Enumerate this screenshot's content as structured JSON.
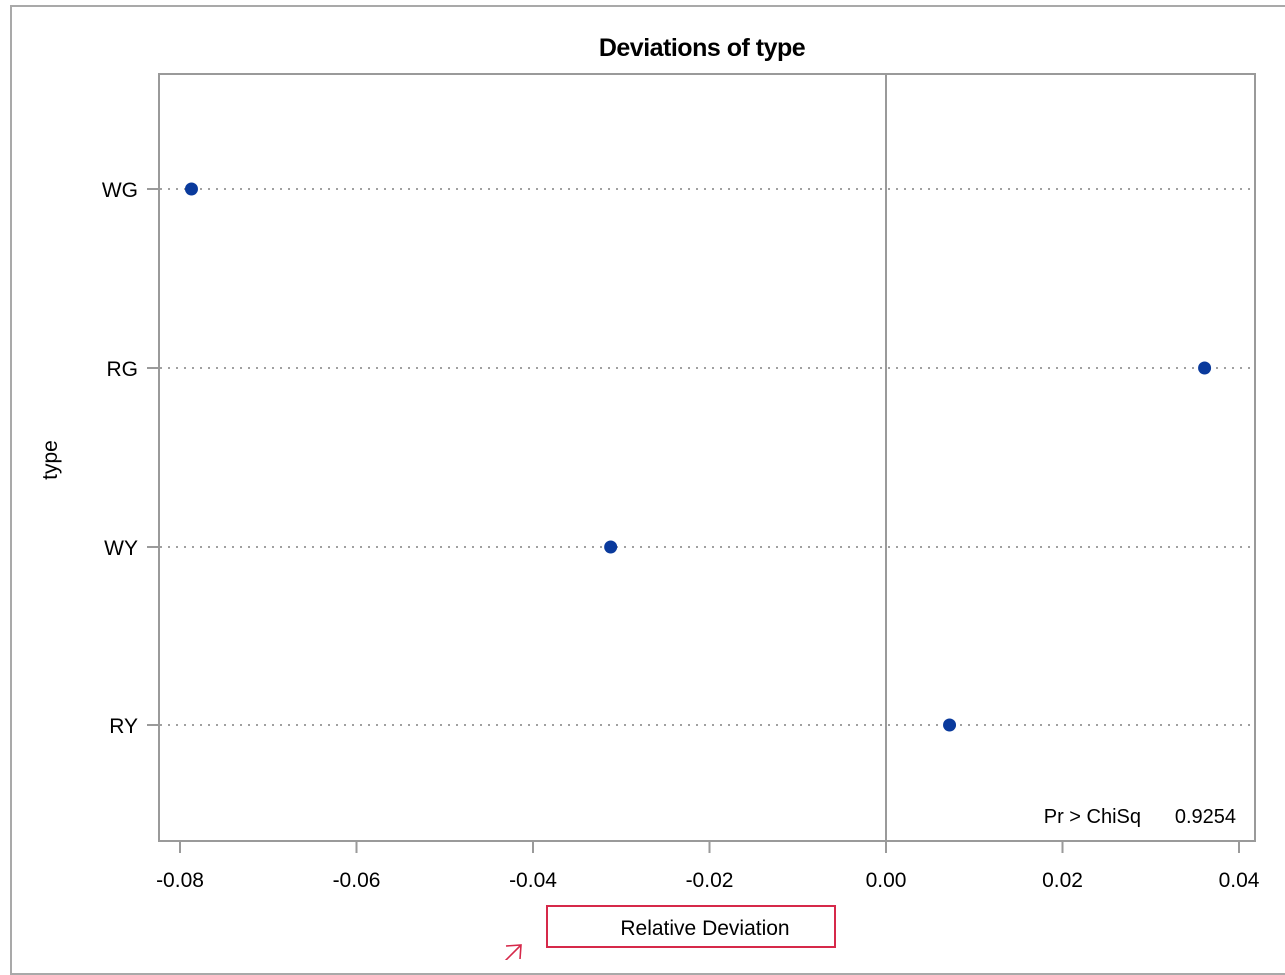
{
  "chart_data": {
    "type": "scatter",
    "title": "Deviations of type",
    "xlabel": "Relative Deviation",
    "ylabel": "type",
    "categories": [
      "WG",
      "RG",
      "WY",
      "RY"
    ],
    "values": [
      -0.0787,
      0.0361,
      -0.0312,
      0.0072
    ],
    "xlim": [
      -0.082,
      0.041
    ],
    "xticks": [
      -0.08,
      -0.06,
      -0.04,
      -0.02,
      0.0,
      0.02,
      0.04
    ],
    "xtick_labels": [
      "-0.08",
      "-0.06",
      "-0.04",
      "-0.02",
      "0.00",
      "0.02",
      "0.04"
    ],
    "reference_line": 0,
    "grid": "dotted horizontal",
    "inset": {
      "label": "Pr > ChiSq",
      "value": "0.9254"
    },
    "colors": {
      "marker": "#0a3a9c",
      "frame": "#9a9a9a",
      "grid": "#a0a0a0",
      "highlight": "#d6294a"
    }
  }
}
